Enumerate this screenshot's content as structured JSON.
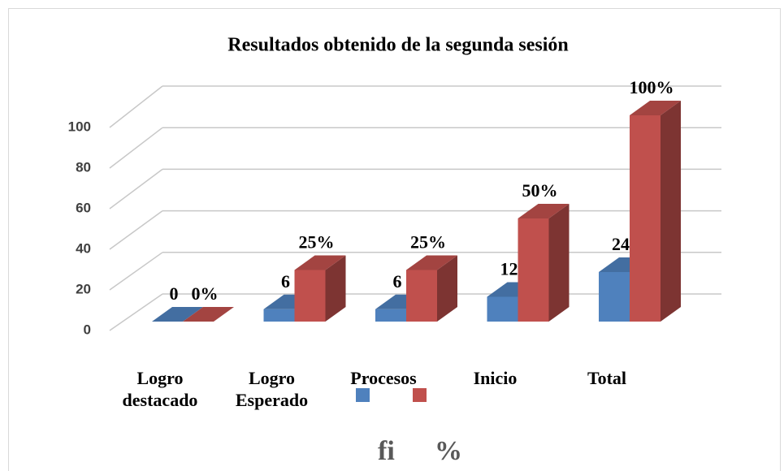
{
  "chart_data": {
    "type": "bar3d",
    "title": "Resultados obtenido de la segunda sesión",
    "categories": [
      "Logro destacado",
      "Logro Esperado",
      "Procesos",
      "Inicio",
      "Total"
    ],
    "series": [
      {
        "name": "fi",
        "color": "#4f81bd",
        "values": [
          0,
          6,
          6,
          12,
          24
        ]
      },
      {
        "name": "%",
        "color": "#c0504d",
        "values": [
          0,
          25,
          25,
          50,
          100
        ],
        "value_labels": [
          "0%",
          "25%",
          "25%",
          "50%",
          "100%"
        ]
      }
    ],
    "ylim": [
      0,
      100
    ],
    "yticks": [
      0,
      20,
      40,
      60,
      80,
      100
    ],
    "grid": true,
    "legend": "bottom"
  }
}
